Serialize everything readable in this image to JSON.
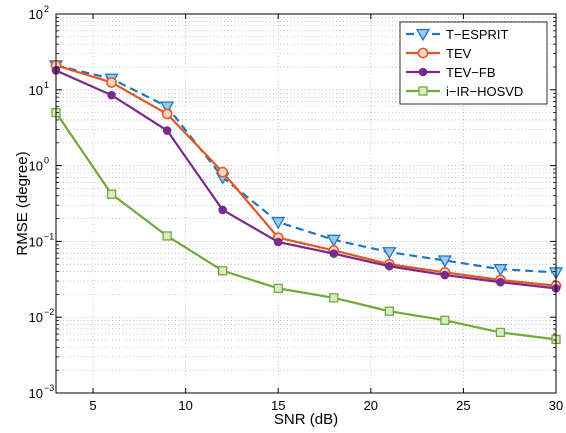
{
  "chart_data": {
    "type": "line",
    "title": "",
    "xlabel": "SNR (dB)",
    "ylabel": "RMSE (degree)",
    "xlim": [
      3,
      30
    ],
    "ylim": [
      0.001,
      100
    ],
    "yscale": "log",
    "grid": true,
    "legend_position": "top-right",
    "x": [
      3,
      6,
      9,
      12,
      15,
      18,
      21,
      24,
      27,
      30
    ],
    "x_ticks": [
      {
        "value": 5,
        "label": "5"
      },
      {
        "value": 10,
        "label": "10"
      },
      {
        "value": 15,
        "label": "15"
      },
      {
        "value": 20,
        "label": "20"
      },
      {
        "value": 25,
        "label": "25"
      },
      {
        "value": 30,
        "label": "30"
      }
    ],
    "y_ticks": [
      {
        "value": 0.001,
        "base": "10",
        "exp": "−3"
      },
      {
        "value": 0.01,
        "base": "10",
        "exp": "−2"
      },
      {
        "value": 0.1,
        "base": "10",
        "exp": "−1"
      },
      {
        "value": 1,
        "base": "10",
        "exp": "0"
      },
      {
        "value": 10,
        "base": "10",
        "exp": "1"
      },
      {
        "value": 100,
        "base": "10",
        "exp": "2"
      }
    ],
    "series": [
      {
        "name": "T−ESPRIT",
        "color": "#1f77c4",
        "dash": "dashed",
        "marker": "triangle-down",
        "values": [
          21,
          14,
          6,
          0.7,
          0.18,
          0.105,
          0.072,
          0.056,
          0.043,
          0.039
        ]
      },
      {
        "name": "TEV",
        "color": "#e3561f",
        "dash": "solid",
        "marker": "circle",
        "values": [
          21,
          12.5,
          4.8,
          0.82,
          0.112,
          0.076,
          0.05,
          0.039,
          0.031,
          0.026
        ]
      },
      {
        "name": "TEV−FB",
        "color": "#7a2a8c",
        "dash": "solid",
        "marker": "dot",
        "values": [
          18,
          8.5,
          2.9,
          0.26,
          0.098,
          0.069,
          0.047,
          0.036,
          0.029,
          0.024
        ]
      },
      {
        "name": "i−IR−HOSVD",
        "color": "#70a83b",
        "dash": "solid",
        "marker": "square",
        "values": [
          5,
          0.42,
          0.118,
          0.041,
          0.024,
          0.018,
          0.012,
          0.0091,
          0.0063,
          0.0051
        ]
      }
    ]
  }
}
